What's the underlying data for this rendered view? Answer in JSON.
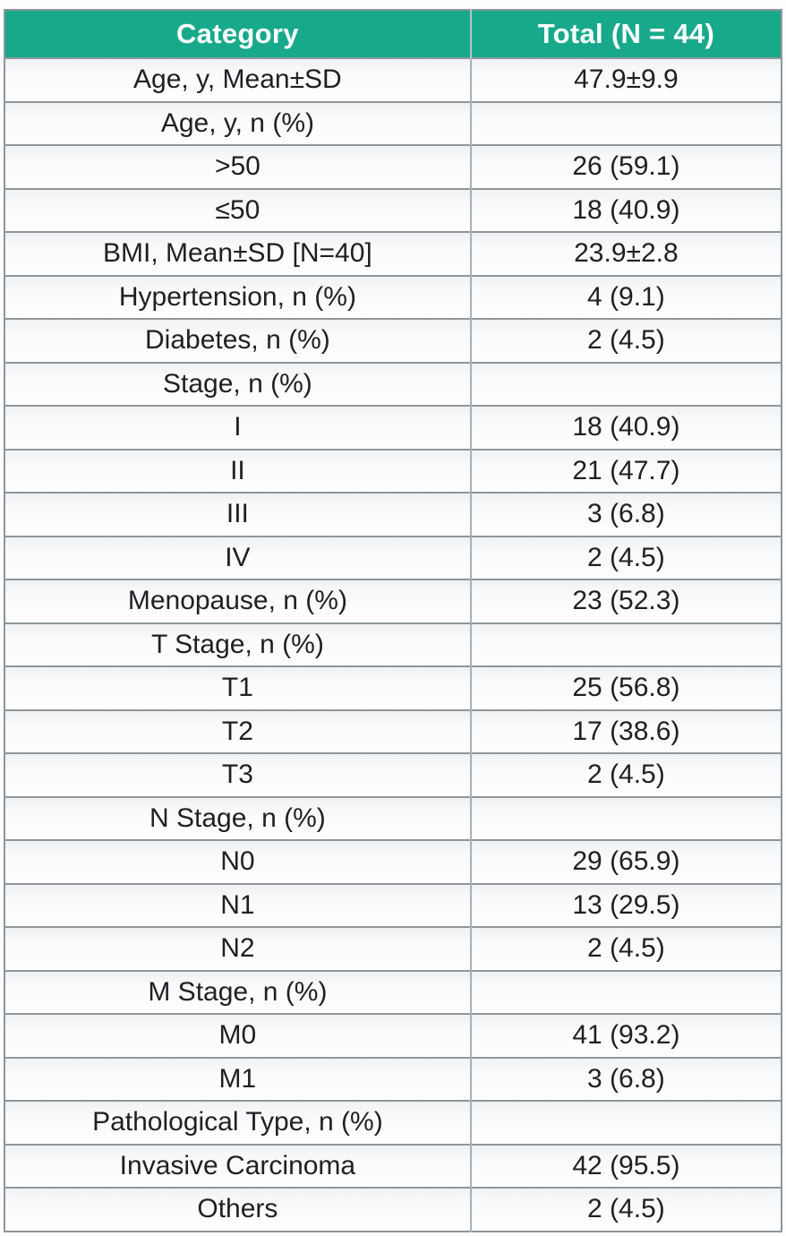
{
  "chart_data": {
    "type": "table",
    "title": "Patient characteristics table",
    "columns": [
      "Category",
      "Total (N = 44)"
    ],
    "rows": [
      [
        "Age, y, Mean±SD",
        "47.9±9.9"
      ],
      [
        "Age, y, n (%)",
        ""
      ],
      [
        ">50",
        "26 (59.1)"
      ],
      [
        "≤50",
        "18 (40.9)"
      ],
      [
        "BMI, Mean±SD [N=40]",
        "23.9±2.8"
      ],
      [
        "Hypertension, n (%)",
        "4 (9.1)"
      ],
      [
        "Diabetes, n (%)",
        "2 (4.5)"
      ],
      [
        "Stage, n (%)",
        ""
      ],
      [
        "I",
        "18 (40.9)"
      ],
      [
        "II",
        "21 (47.7)"
      ],
      [
        "III",
        "3 (6.8)"
      ],
      [
        "IV",
        "2 (4.5)"
      ],
      [
        "Menopause, n (%)",
        "23 (52.3)"
      ],
      [
        "T Stage, n (%)",
        ""
      ],
      [
        "T1",
        "25 (56.8)"
      ],
      [
        "T2",
        "17 (38.6)"
      ],
      [
        "T3",
        "2 (4.5)"
      ],
      [
        "N Stage, n (%)",
        ""
      ],
      [
        "N0",
        "29 (65.9)"
      ],
      [
        "N1",
        "13 (29.5)"
      ],
      [
        "N2",
        "2 (4.5)"
      ],
      [
        "M Stage, n (%)",
        ""
      ],
      [
        "M0",
        "41 (93.2)"
      ],
      [
        "M1",
        "3 (6.8)"
      ],
      [
        "Pathological Type, n (%)",
        ""
      ],
      [
        "Invasive Carcinoma",
        "42 (95.5)"
      ],
      [
        "Others",
        "2 (4.5)"
      ]
    ],
    "layout": {
      "grid": true,
      "text_align": "center",
      "header_position": "top"
    }
  },
  "colors": {
    "header_bg": "#18a98b",
    "header_text": "#ffffff",
    "border": "#8f969c",
    "cell_text": "#1f2023"
  }
}
